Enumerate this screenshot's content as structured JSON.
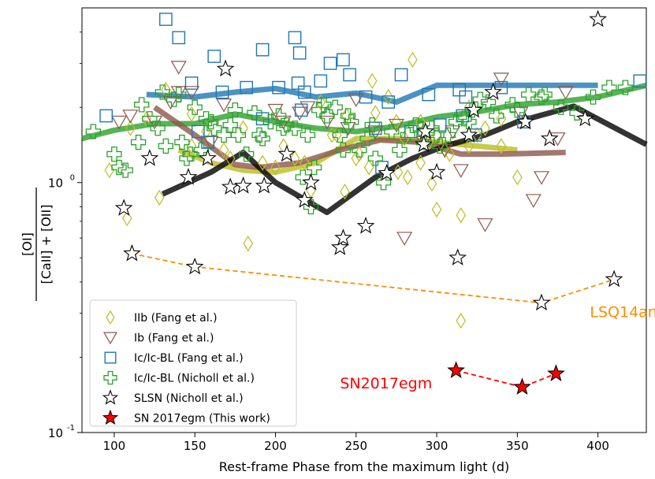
{
  "chart_data": {
    "type": "scatter",
    "xlabel": "Rest-frame Phase from the maximum light (d)",
    "ylabel": {
      "numerator": "[OI]",
      "denominator": "[CaII] + [OII]"
    },
    "xlim": [
      80,
      430
    ],
    "ylim": [
      0.1,
      5.0
    ],
    "yscale": "log",
    "x_ticks": [
      100,
      150,
      200,
      250,
      300,
      350,
      400
    ],
    "y_ticks": [
      {
        "value": 1.0,
        "label": "10^0"
      },
      {
        "value": 0.1,
        "label": "10^-1"
      }
    ],
    "legend_position": "lower-left",
    "colors": {
      "IIb": "#bcbd22",
      "Ib": "#8c564b",
      "IcBL": "#1f77b4",
      "NichollIc": "#2ca02c",
      "SLSN": "#000000",
      "SN2017egm": "#ff0000",
      "LSQ14an": "#ff8c00"
    },
    "legend": [
      {
        "key": "IIb",
        "label": "IIb (Fang et al.)",
        "marker": "diamond"
      },
      {
        "key": "Ib",
        "label": "Ib (Fang et al.)",
        "marker": "triangle-down"
      },
      {
        "key": "IcBL",
        "label": "Ic/Ic-BL (Fang et al.)",
        "marker": "square"
      },
      {
        "key": "NichollIc",
        "label": "Ic/Ic-BL (Nicholl et al.)",
        "marker": "plus"
      },
      {
        "key": "SLSN",
        "label": "SLSN (Nicholl et al.)",
        "marker": "star-open"
      },
      {
        "key": "SN2017egm",
        "label": "SN 2017egm (This work)",
        "marker": "star-filled"
      }
    ],
    "annotations": [
      {
        "text": "LSQ14an",
        "x": 395,
        "y": 0.29,
        "color": "#ff8c00"
      },
      {
        "text": "SN2017egm",
        "x": 240,
        "y": 0.15,
        "color": "#ff0000"
      }
    ],
    "trend_lines": [
      {
        "name": "IcBL trend",
        "color": "#1f77b4",
        "x": [
          120,
          150,
          175,
          200,
          225,
          250,
          275,
          300,
          325,
          350,
          375,
          400
        ],
        "y": [
          2.25,
          2.2,
          2.3,
          2.38,
          2.2,
          2.28,
          2.1,
          2.45,
          2.45,
          2.45,
          2.45,
          2.45
        ]
      },
      {
        "name": "Nicholl Ic trend",
        "color": "#2ca02c",
        "x": [
          80,
          100,
          125,
          150,
          175,
          200,
          225,
          250,
          275,
          300,
          325,
          350,
          375,
          400,
          430
        ],
        "y": [
          1.5,
          1.62,
          1.72,
          1.72,
          1.88,
          1.75,
          1.65,
          1.6,
          1.68,
          1.83,
          1.92,
          2.05,
          2.1,
          2.2,
          2.45
        ]
      },
      {
        "name": "IIb trend",
        "color": "#bcbd22",
        "x": [
          140,
          160,
          180,
          200,
          225,
          250,
          275,
          300,
          325,
          350
        ],
        "y": [
          1.35,
          1.2,
          1.12,
          1.1,
          1.2,
          1.5,
          1.5,
          1.45,
          1.4,
          1.35
        ]
      },
      {
        "name": "Ib trend",
        "color": "#8c564b",
        "x": [
          125,
          150,
          175,
          190,
          215,
          240,
          265,
          290,
          315,
          340,
          380
        ],
        "y": [
          2.0,
          1.55,
          1.18,
          1.15,
          1.2,
          1.35,
          1.48,
          1.45,
          1.3,
          1.3,
          1.32
        ]
      },
      {
        "name": "SLSN trend",
        "color": "#000000",
        "x": [
          130,
          160,
          180,
          200,
          232,
          262,
          285,
          305,
          330,
          350,
          385,
          430
        ],
        "y": [
          0.9,
          1.1,
          1.32,
          1.0,
          0.76,
          1.05,
          1.25,
          1.4,
          1.55,
          1.75,
          2.02,
          1.42
        ]
      }
    ],
    "series": [
      {
        "key": "LSQ14an",
        "name": "LSQ14an",
        "marker": "star-open",
        "connect": true,
        "x": [
          111,
          150,
          365,
          410
        ],
        "y": [
          0.52,
          0.46,
          0.33,
          0.41
        ]
      },
      {
        "key": "SN2017egm",
        "name": "SN 2017egm (This work)",
        "marker": "star-filled",
        "connect": true,
        "x": [
          312,
          353,
          374
        ],
        "y": [
          0.177,
          0.152,
          0.172
        ]
      },
      {
        "key": "IIb",
        "name": "IIb (Fang et al.)",
        "marker": "diamond",
        "x": [
          97,
          108,
          128,
          132,
          148,
          157,
          183,
          218,
          222,
          235,
          243,
          250,
          262,
          276,
          282,
          290,
          295,
          297,
          308,
          320,
          330,
          350,
          148,
          168,
          172,
          192,
          200,
          205,
          212,
          228,
          238,
          244,
          252,
          258,
          270,
          280,
          285,
          300,
          315,
          325,
          340,
          110,
          300,
          315,
          340,
          260,
          275,
          320,
          120,
          180,
          305,
          290
        ],
        "y": [
          1.12,
          0.72,
          0.87,
          2.35,
          1.88,
          1.6,
          0.57,
          1.2,
          0.93,
          1.55,
          0.92,
          1.25,
          1.9,
          1.1,
          1.05,
          1.75,
          1.45,
          0.99,
          1.3,
          1.4,
          1.65,
          1.05,
          1.4,
          1.35,
          1.25,
          1.2,
          1.15,
          1.4,
          1.25,
          2.1,
          1.55,
          1.85,
          1.3,
          1.15,
          2.2,
          1.5,
          3.1,
          0.78,
          0.74,
          1.55,
          1.8,
          1.65,
          1.55,
          0.28,
          1.4,
          2.55,
          1.75,
          2.0,
          1.8,
          1.65,
          1.35,
          1.2
        ]
      },
      {
        "key": "Ib",
        "name": "Ib (Fang et al.)",
        "marker": "triangle-down",
        "x": [
          103,
          110,
          125,
          140,
          140,
          148,
          168,
          200,
          205,
          215,
          220,
          232,
          245,
          262,
          275,
          280,
          292,
          305,
          315,
          330,
          340,
          352,
          360,
          365,
          375,
          380,
          135,
          160,
          250,
          310
        ],
        "y": [
          1.75,
          1.85,
          1.75,
          2.9,
          2.3,
          2.3,
          2.05,
          1.95,
          1.75,
          1.9,
          2.0,
          1.75,
          1.65,
          1.6,
          1.7,
          0.6,
          1.45,
          1.35,
          1.12,
          0.68,
          2.6,
          1.9,
          0.85,
          1.05,
          1.5,
          2.3,
          2.1,
          1.45,
          2.15,
          1.6
        ]
      },
      {
        "key": "IcBL",
        "name": "Ic/Ic-BL (Fang et al.)",
        "marker": "square",
        "x": [
          95,
          140,
          148,
          158,
          162,
          167,
          182,
          192,
          202,
          212,
          214,
          218,
          228,
          234,
          242,
          246,
          256,
          262,
          266,
          278,
          284,
          302,
          314,
          316,
          324,
          354,
          426,
          152,
          192,
          216,
          270,
          295,
          318,
          340
        ],
        "y": [
          1.85,
          3.8,
          2.5,
          1.45,
          3.2,
          2.3,
          2.4,
          3.4,
          2.4,
          3.8,
          2.5,
          2.3,
          2.55,
          3.0,
          3.1,
          2.7,
          2.2,
          1.65,
          1.15,
          2.7,
          1.6,
          1.7,
          2.35,
          1.85,
          1.55,
          1.75,
          2.55,
          1.6,
          1.8,
          1.95,
          2.1,
          2.25,
          2.2,
          2.4
        ],
        "sizes": [],
        "large": [
          {
            "x": 215,
            "y": 3.3
          },
          {
            "x": 132,
            "y": 4.5
          }
        ]
      },
      {
        "key": "NichollIc",
        "name": "Ic/Ic-BL (Nicholl et al.)",
        "marker": "plus",
        "x": [
          87,
          103,
          107,
          117,
          122,
          127,
          132,
          137,
          140,
          142,
          147,
          150,
          154,
          157,
          162,
          168,
          172,
          177,
          182,
          187,
          192,
          197,
          202,
          207,
          212,
          217,
          220,
          222,
          224,
          227,
          232,
          237,
          240,
          242,
          247,
          252,
          257,
          262,
          267,
          272,
          277,
          282,
          287,
          292,
          297,
          302,
          307,
          312,
          317,
          322,
          327,
          332,
          337,
          347,
          357,
          367,
          377,
          387,
          397,
          407,
          417,
          100,
          115,
          130,
          145,
          160,
          175,
          190,
          205,
          230,
          245,
          260,
          290,
          300,
          320,
          350,
          365
        ],
        "y": [
          1.6,
          1.15,
          1.12,
          2.05,
          1.8,
          1.65,
          1.4,
          2.15,
          2.25,
          1.45,
          1.3,
          2.0,
          1.35,
          1.8,
          1.65,
          1.55,
          1.7,
          1.55,
          1.3,
          1.9,
          1.5,
          1.75,
          1.85,
          1.7,
          1.65,
          1.05,
          1.55,
          0.8,
          1.15,
          1.95,
          1.85,
          2.0,
          1.55,
          1.35,
          1.75,
          1.35,
          1.5,
          1.25,
          1.0,
          1.6,
          1.35,
          1.55,
          1.7,
          1.45,
          1.65,
          1.4,
          1.55,
          1.75,
          1.8,
          1.95,
          2.15,
          2.1,
          1.85,
          2.05,
          2.25,
          2.25,
          2.0,
          1.9,
          2.2,
          2.4,
          2.4,
          1.3,
          1.45,
          2.3,
          1.25,
          1.75,
          1.95,
          1.55,
          1.65,
          2.05,
          1.85,
          1.7,
          1.65,
          1.55,
          1.75,
          1.95,
          2.2
        ]
      },
      {
        "key": "SLSN",
        "name": "SLSN (Nicholl et al.)",
        "marker": "star-open",
        "x": [
          106,
          122,
          146,
          158,
          169,
          172,
          180,
          193,
          207,
          218,
          222,
          240,
          242,
          256,
          269,
          292,
          293,
          300,
          313,
          320,
          323,
          335,
          355,
          370,
          392,
          400
        ],
        "y": [
          0.79,
          1.25,
          1.05,
          1.25,
          2.85,
          0.96,
          0.97,
          0.97,
          1.3,
          0.85,
          1.0,
          0.55,
          0.6,
          0.67,
          1.09,
          1.42,
          1.6,
          1.1,
          0.5,
          1.55,
          1.95,
          2.3,
          1.75,
          1.5,
          1.8,
          4.5
        ]
      }
    ]
  }
}
